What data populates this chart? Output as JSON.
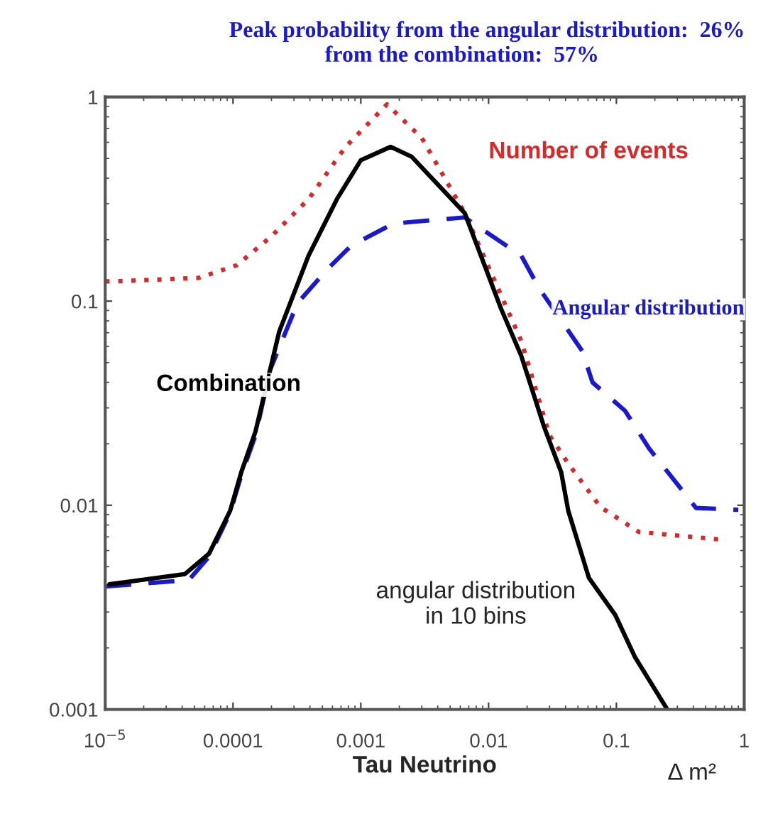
{
  "chart_data": {
    "type": "line",
    "title": "Peak probability from the angular distribution:  26%",
    "subtitle": "from the combination:  57%",
    "xlabel": "Tau Neutrino",
    "annotations": [
      "angular distribution\nin 10 bins",
      "Δ m²"
    ],
    "log": "xy",
    "legend": false,
    "grid": false,
    "xlim": [
      1e-05,
      1
    ],
    "ylim": [
      0.001,
      1
    ],
    "xticks": [
      {
        "value": 1e-05,
        "label": "10$^{−5}$"
      },
      0.0001,
      0.001,
      0.01,
      0.1,
      1
    ],
    "yticks": [
      0.001,
      0.01,
      0.1,
      1
    ],
    "series": [
      {
        "name": "Number of events",
        "color": "#d42a2a",
        "line_style": "dotted",
        "x": [
          1e-05,
          1.17e-05,
          5.4e-05,
          0.000107,
          0.000195,
          0.00039,
          0.00076,
          0.0016,
          0.003,
          0.0065,
          0.018,
          0.03,
          0.042,
          0.075,
          0.15,
          0.64
        ],
        "values": [
          0.125,
          0.125,
          0.13,
          0.15,
          0.205,
          0.316,
          0.57,
          0.92,
          0.63,
          0.27,
          0.064,
          0.022,
          0.016,
          0.0098,
          0.0074,
          0.0068
        ]
      },
      {
        "name": "Angular distribution",
        "color": "#1a1acc",
        "line_style": "dashed",
        "x": [
          1e-05,
          4.5e-05,
          6.5e-05,
          9.5e-05,
          0.000116,
          0.00015,
          0.000195,
          0.00032,
          0.00054,
          0.00084,
          0.0018,
          0.0065,
          0.018,
          0.025,
          0.054,
          0.065,
          0.117,
          0.18,
          0.42,
          0.9
        ],
        "values": [
          0.004,
          0.0043,
          0.0056,
          0.0092,
          0.014,
          0.022,
          0.046,
          0.098,
          0.142,
          0.187,
          0.24,
          0.257,
          0.167,
          0.115,
          0.057,
          0.04,
          0.029,
          0.019,
          0.0097,
          0.0095
        ]
      },
      {
        "name": "Combination",
        "color": "#000000",
        "line_style": "solid",
        "x": [
          1.08e-05,
          2.5e-05,
          4.2e-05,
          6.5e-05,
          9.5e-05,
          0.000116,
          0.00015,
          0.00023,
          0.00039,
          0.00065,
          0.001,
          0.00171,
          0.0025,
          0.0065,
          0.0125,
          0.018,
          0.027,
          0.037,
          0.042,
          0.061,
          0.098,
          0.14,
          0.25
        ],
        "values": [
          0.0041,
          0.0044,
          0.0046,
          0.0058,
          0.0094,
          0.0145,
          0.023,
          0.071,
          0.167,
          0.316,
          0.49,
          0.57,
          0.51,
          0.27,
          0.092,
          0.054,
          0.0245,
          0.0145,
          0.0094,
          0.0044,
          0.0029,
          0.0018,
          0.001
        ]
      }
    ]
  }
}
